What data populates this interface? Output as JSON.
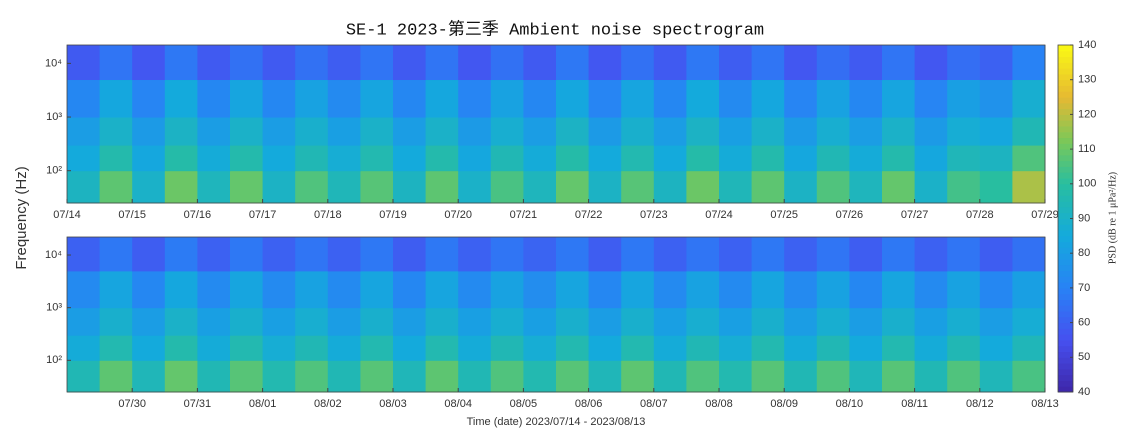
{
  "chart_data": [
    {
      "type": "heatmap",
      "title": "SE-1 2023-第三季 Ambient noise spectrogram",
      "ylabel": "Frequency (Hz)",
      "xlim": [
        0,
        15
      ],
      "ylim": [
        25,
        22000
      ],
      "yscale": "log",
      "xticks": [
        {
          "value": 0,
          "label": "07/14"
        },
        {
          "value": 1,
          "label": "07/15"
        },
        {
          "value": 2,
          "label": "07/16"
        },
        {
          "value": 3,
          "label": "07/17"
        },
        {
          "value": 4,
          "label": "07/18"
        },
        {
          "value": 5,
          "label": "07/19"
        },
        {
          "value": 6,
          "label": "07/20"
        },
        {
          "value": 7,
          "label": "07/21"
        },
        {
          "value": 8,
          "label": "07/22"
        },
        {
          "value": 9,
          "label": "07/23"
        },
        {
          "value": 10,
          "label": "07/24"
        },
        {
          "value": 11,
          "label": "07/25"
        },
        {
          "value": 12,
          "label": "07/26"
        },
        {
          "value": 13,
          "label": "07/27"
        },
        {
          "value": 14,
          "label": "07/28"
        },
        {
          "value": 15,
          "label": "07/29"
        }
      ],
      "yticks": [
        {
          "value": 100,
          "label": "10²"
        },
        {
          "value": 1000,
          "label": "10³"
        },
        {
          "value": 10000,
          "label": "10⁴"
        }
      ],
      "x": [
        0,
        0.5,
        1,
        1.5,
        2,
        2.5,
        3,
        3.5,
        4,
        4.5,
        5,
        5.5,
        6,
        6.5,
        7,
        7.5,
        8,
        8.5,
        9,
        9.5,
        10,
        10.5,
        11,
        11.5,
        12,
        12.5,
        13,
        13.5,
        14,
        14.5,
        15
      ],
      "y": [
        25,
        100,
        300,
        1000,
        5000,
        22000
      ],
      "z": [
        [
          92,
          108,
          90,
          110,
          93,
          109,
          91,
          106,
          94,
          107,
          92,
          108,
          90,
          105,
          93,
          109,
          91,
          107,
          92,
          110,
          94,
          108,
          91,
          106,
          93,
          109,
          90,
          104,
          100,
          118
        ],
        [
          85,
          97,
          84,
          98,
          86,
          97,
          85,
          95,
          87,
          96,
          85,
          97,
          84,
          95,
          86,
          98,
          85,
          96,
          85,
          98,
          86,
          97,
          84,
          95,
          86,
          97,
          84,
          94,
          92,
          106
        ],
        [
          80,
          90,
          79,
          91,
          80,
          90,
          80,
          89,
          81,
          90,
          80,
          90,
          79,
          88,
          80,
          91,
          79,
          89,
          80,
          91,
          81,
          90,
          79,
          88,
          80,
          90,
          79,
          87,
          84,
          95
        ],
        [
          72,
          84,
          71,
          85,
          72,
          83,
          72,
          82,
          73,
          83,
          72,
          84,
          71,
          82,
          72,
          84,
          71,
          83,
          72,
          85,
          73,
          84,
          71,
          82,
          72,
          83,
          71,
          81,
          76,
          88
        ],
        [
          58,
          66,
          57,
          67,
          58,
          65,
          58,
          65,
          59,
          66,
          58,
          66,
          57,
          65,
          58,
          67,
          57,
          65,
          58,
          67,
          59,
          66,
          57,
          64,
          58,
          66,
          57,
          64,
          60,
          70
        ]
      ],
      "colorbar": {
        "label": "PSD (dB re 1 μPa²/Hz)",
        "lim": [
          40,
          140
        ],
        "ticks": [
          40,
          50,
          60,
          70,
          80,
          90,
          100,
          110,
          120,
          130,
          140
        ]
      }
    },
    {
      "type": "heatmap",
      "xlabel": "Time (date) 2023/07/14 - 2023/08/13",
      "xlim": [
        15,
        30
      ],
      "ylim": [
        25,
        22000
      ],
      "yscale": "log",
      "xticks": [
        {
          "value": 16,
          "label": "07/30"
        },
        {
          "value": 17,
          "label": "07/31"
        },
        {
          "value": 18,
          "label": "08/01"
        },
        {
          "value": 19,
          "label": "08/02"
        },
        {
          "value": 20,
          "label": "08/03"
        },
        {
          "value": 21,
          "label": "08/04"
        },
        {
          "value": 22,
          "label": "08/05"
        },
        {
          "value": 23,
          "label": "08/06"
        },
        {
          "value": 24,
          "label": "08/07"
        },
        {
          "value": 25,
          "label": "08/08"
        },
        {
          "value": 26,
          "label": "08/09"
        },
        {
          "value": 27,
          "label": "08/10"
        },
        {
          "value": 28,
          "label": "08/11"
        },
        {
          "value": 29,
          "label": "08/12"
        },
        {
          "value": 30,
          "label": "08/13"
        }
      ],
      "yticks": [
        {
          "value": 100,
          "label": "10²"
        },
        {
          "value": 1000,
          "label": "10³"
        },
        {
          "value": 10000,
          "label": "10⁴"
        }
      ],
      "x": [
        15,
        15.5,
        16,
        16.5,
        17,
        17.5,
        18,
        18.5,
        19,
        19.5,
        20,
        20.5,
        21,
        21.5,
        22,
        22.5,
        23,
        23.5,
        24,
        24.5,
        25,
        25.5,
        26,
        26.5,
        27,
        27.5,
        28,
        28.5,
        29,
        29.5,
        30
      ],
      "y": [
        25,
        100,
        300,
        1000,
        5000,
        22000
      ],
      "z": [
        [
          95,
          108,
          94,
          109,
          95,
          107,
          96,
          106,
          95,
          107,
          94,
          108,
          95,
          106,
          96,
          107,
          94,
          108,
          95,
          106,
          96,
          107,
          95,
          106,
          94,
          107,
          95,
          106,
          94,
          105
        ],
        [
          86,
          96,
          85,
          97,
          86,
          96,
          87,
          95,
          86,
          96,
          85,
          96,
          86,
          95,
          87,
          96,
          85,
          96,
          86,
          95,
          87,
          96,
          86,
          95,
          85,
          96,
          86,
          95,
          85,
          94
        ],
        [
          80,
          89,
          80,
          90,
          81,
          89,
          81,
          88,
          80,
          89,
          80,
          89,
          81,
          88,
          81,
          89,
          80,
          89,
          81,
          88,
          81,
          89,
          80,
          88,
          80,
          89,
          81,
          88,
          80,
          87
        ],
        [
          73,
          83,
          72,
          84,
          73,
          83,
          73,
          82,
          73,
          83,
          72,
          83,
          73,
          82,
          74,
          83,
          72,
          83,
          73,
          82,
          73,
          83,
          73,
          82,
          72,
          83,
          73,
          82,
          72,
          81
        ],
        [
          60,
          67,
          59,
          68,
          60,
          67,
          60,
          66,
          60,
          67,
          59,
          67,
          60,
          66,
          61,
          67,
          59,
          67,
          60,
          66,
          60,
          67,
          60,
          66,
          59,
          67,
          60,
          66,
          59,
          65
        ]
      ]
    }
  ]
}
